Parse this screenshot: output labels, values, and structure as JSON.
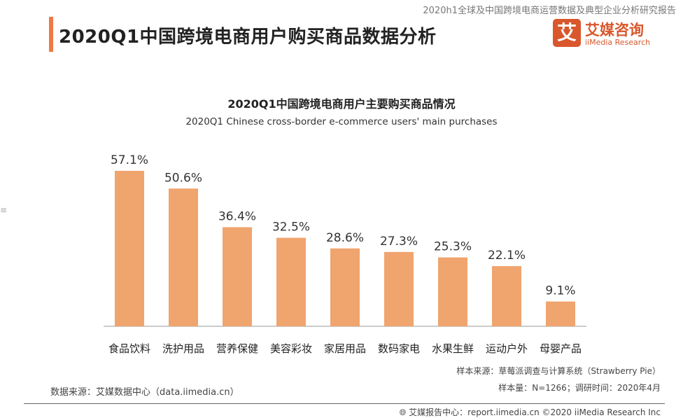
{
  "header": {
    "report_title": "2020h1全球及中国跨境电商运营数据及典型企业分析研究报告",
    "page_title": "2020Q1中国跨境电商用户购买商品数据分析",
    "logo": {
      "mark": "艾",
      "cn": "艾媒咨询",
      "en": "iiMedia Research"
    }
  },
  "chart_data": {
    "type": "bar",
    "title": "2020Q1中国跨境电商用户主要购买商品情况",
    "subtitle": "2020Q1 Chinese cross-border e-commerce users' main purchases",
    "categories": [
      "食品饮料",
      "洗护用品",
      "营养保健",
      "美容彩妆",
      "家居用品",
      "数码家电",
      "水果生鲜",
      "运动户外",
      "母婴产品"
    ],
    "values": [
      57.1,
      50.6,
      36.4,
      32.5,
      28.6,
      27.3,
      25.3,
      22.1,
      9.1
    ],
    "value_labels": [
      "57.1%",
      "50.6%",
      "36.4%",
      "32.5%",
      "28.6%",
      "27.3%",
      "25.3%",
      "22.1%",
      "9.1%"
    ],
    "unit": "%",
    "ylim": [
      0,
      60
    ],
    "grid": false,
    "bar_color": "#F0A46E"
  },
  "footer": {
    "sample_source": "样本来源：草莓派调查与计算系统（Strawberry Pie）",
    "sample_size": "样本量：N=1266；调研时间：2020年4月",
    "data_source": "数据来源：艾媒数据中心（data.iimedia.cn）",
    "copyright": "艾媒报告中心：report.iimedia.cn  ©2020  iiMedia Research  Inc"
  },
  "colors": {
    "accent": "#EE7A45",
    "brand": "#D9572C"
  }
}
